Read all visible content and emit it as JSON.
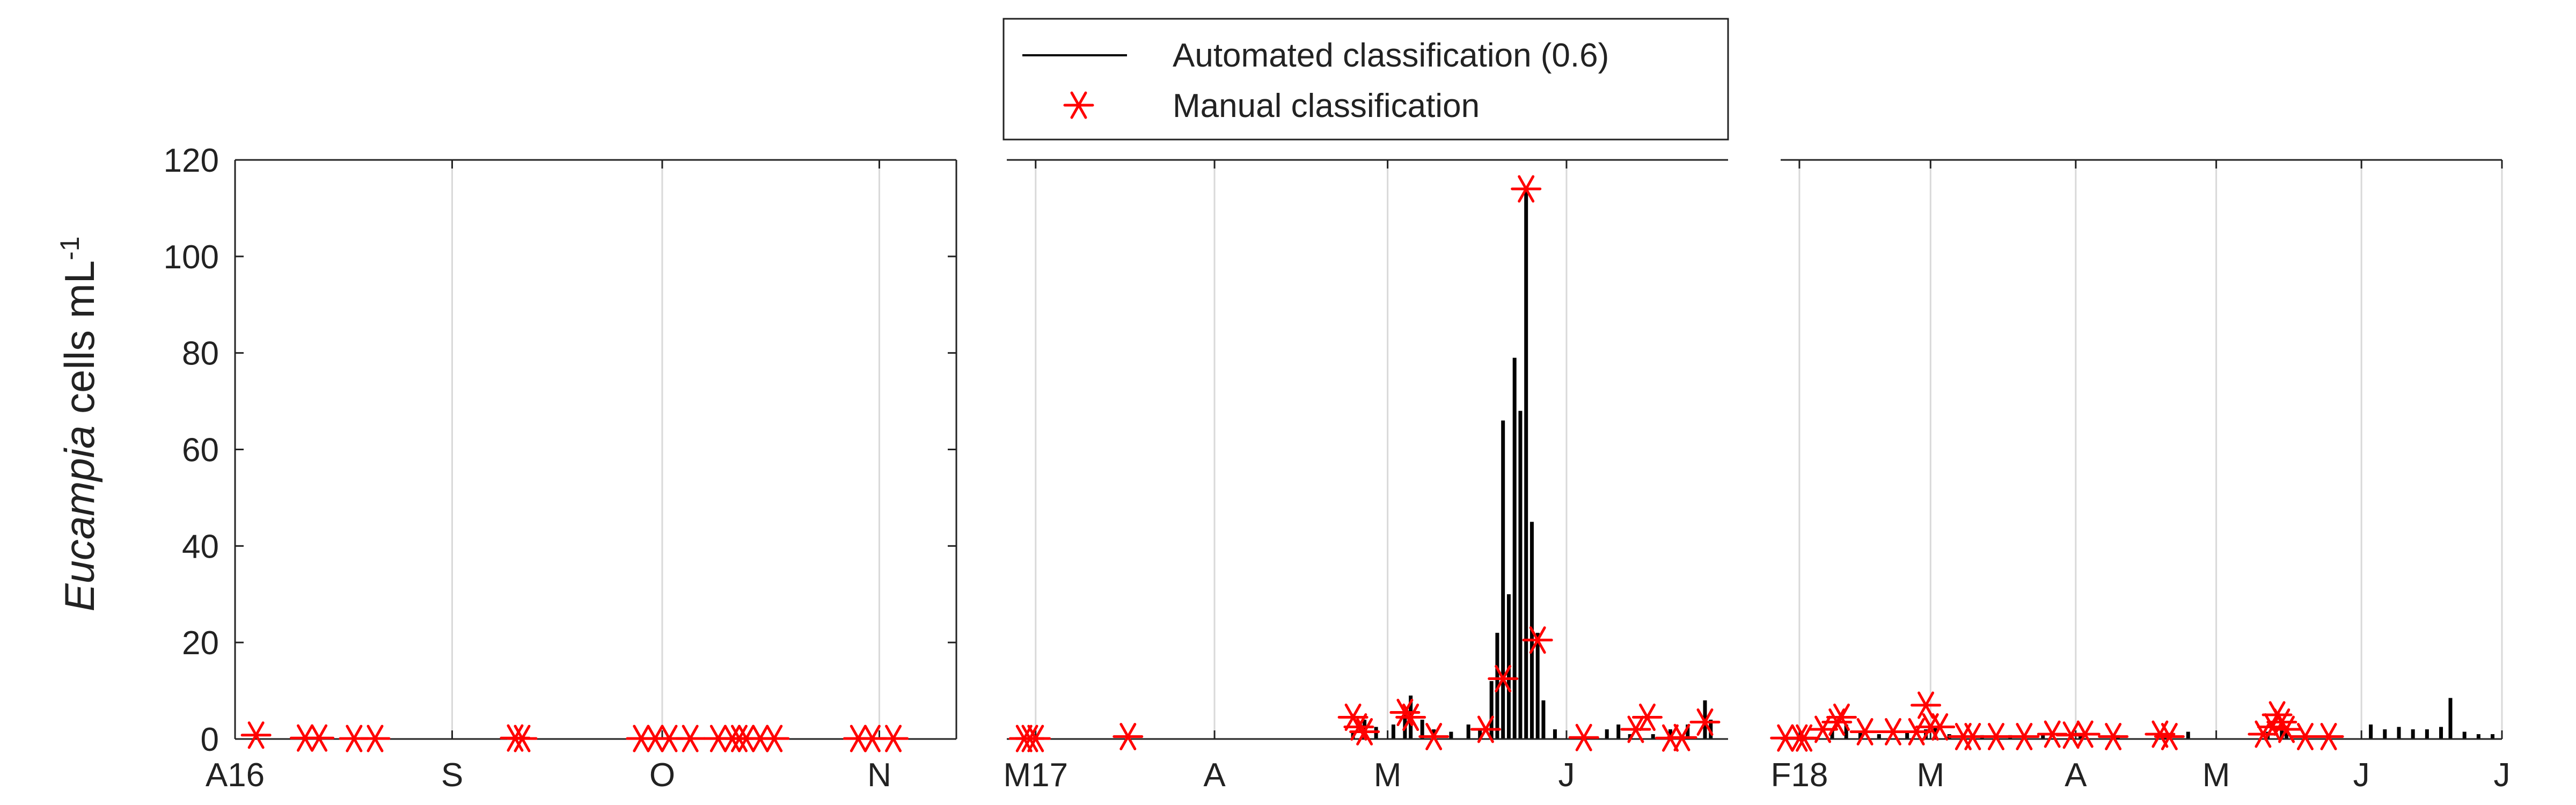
{
  "chart_data": {
    "type": "bar",
    "ylabel": {
      "italic": "Eucampia",
      "plain": " cells mL",
      "superscript": "-1"
    },
    "ylim": [
      0,
      120
    ],
    "yticks": [
      0,
      20,
      40,
      60,
      80,
      100,
      120
    ],
    "grid": "x",
    "legend": {
      "placement": "top-center",
      "entries": [
        {
          "label": "Automated classification (0.6)",
          "style": "line",
          "color": "#000000"
        },
        {
          "label": "Manual classification",
          "style": "asterisk",
          "color": "#ff0000"
        }
      ]
    },
    "series_colors": {
      "automated": "#000000",
      "manual": "#ff0000"
    },
    "panels": [
      {
        "xlim": [
          "2016-08-01",
          "2016-11-12"
        ],
        "xticks": [
          {
            "date": "2016-08-01",
            "label": "A16"
          },
          {
            "date": "2016-09-01",
            "label": "S"
          },
          {
            "date": "2016-10-01",
            "label": "O"
          },
          {
            "date": "2016-11-01",
            "label": "N"
          }
        ],
        "automated": [],
        "manual": [
          {
            "x": "2016-08-04",
            "y": 0.8
          },
          {
            "x": "2016-08-11",
            "y": 0.2
          },
          {
            "x": "2016-08-13",
            "y": 0.2
          },
          {
            "x": "2016-08-18",
            "y": 0.1
          },
          {
            "x": "2016-08-21",
            "y": 0.1
          },
          {
            "x": "2016-09-10",
            "y": 0.2
          },
          {
            "x": "2016-09-11",
            "y": 0.1
          },
          {
            "x": "2016-09-28",
            "y": 0.1
          },
          {
            "x": "2016-09-30",
            "y": 0.1
          },
          {
            "x": "2016-10-02",
            "y": 0.1
          },
          {
            "x": "2016-10-05",
            "y": 0.1
          },
          {
            "x": "2016-10-09",
            "y": 0.1
          },
          {
            "x": "2016-10-11",
            "y": 0.1
          },
          {
            "x": "2016-10-12",
            "y": 0.1
          },
          {
            "x": "2016-10-13",
            "y": 0.1
          },
          {
            "x": "2016-10-15",
            "y": 0.1
          },
          {
            "x": "2016-10-17",
            "y": 0.1
          },
          {
            "x": "2016-10-29",
            "y": 0.1
          },
          {
            "x": "2016-10-31",
            "y": 0.1
          },
          {
            "x": "2016-11-03",
            "y": 0.1
          }
        ]
      },
      {
        "xlim": [
          "2017-02-24",
          "2017-06-29"
        ],
        "xticks": [
          {
            "date": "2017-03-01",
            "label": "M17"
          },
          {
            "date": "2017-04-01",
            "label": "A"
          },
          {
            "date": "2017-05-01",
            "label": "M"
          },
          {
            "date": "2017-06-01",
            "label": "J"
          }
        ],
        "automated": [
          {
            "x": "2017-04-25",
            "y": 1.5
          },
          {
            "x": "2017-04-27",
            "y": 4.0
          },
          {
            "x": "2017-04-29",
            "y": 2.5
          },
          {
            "x": "2017-05-02",
            "y": 3.0
          },
          {
            "x": "2017-05-04",
            "y": 6.0
          },
          {
            "x": "2017-05-05",
            "y": 9.0
          },
          {
            "x": "2017-05-07",
            "y": 4.0
          },
          {
            "x": "2017-05-09",
            "y": 2.0
          },
          {
            "x": "2017-05-12",
            "y": 1.5
          },
          {
            "x": "2017-05-15",
            "y": 3.0
          },
          {
            "x": "2017-05-17",
            "y": 2.0
          },
          {
            "x": "2017-05-19",
            "y": 12.0
          },
          {
            "x": "2017-05-20",
            "y": 22.0
          },
          {
            "x": "2017-05-21",
            "y": 66.0
          },
          {
            "x": "2017-05-22",
            "y": 30.0
          },
          {
            "x": "2017-05-23",
            "y": 79.0
          },
          {
            "x": "2017-05-24",
            "y": 68.0
          },
          {
            "x": "2017-05-25",
            "y": 114.0
          },
          {
            "x": "2017-05-26",
            "y": 45.0
          },
          {
            "x": "2017-05-27",
            "y": 22.0
          },
          {
            "x": "2017-05-28",
            "y": 8.0
          },
          {
            "x": "2017-05-30",
            "y": 2.0
          },
          {
            "x": "2017-06-08",
            "y": 2.0
          },
          {
            "x": "2017-06-10",
            "y": 3.0
          },
          {
            "x": "2017-06-12",
            "y": 1.0
          },
          {
            "x": "2017-06-16",
            "y": 1.0
          },
          {
            "x": "2017-06-19",
            "y": 2.0
          },
          {
            "x": "2017-06-22",
            "y": 3.0
          },
          {
            "x": "2017-06-25",
            "y": 8.0
          },
          {
            "x": "2017-06-26",
            "y": 4.0
          }
        ],
        "manual": [
          {
            "x": "2017-02-27",
            "y": 0.1
          },
          {
            "x": "2017-02-28",
            "y": 0.1
          },
          {
            "x": "2017-03-01",
            "y": 0.1
          },
          {
            "x": "2017-03-17",
            "y": 0.5
          },
          {
            "x": "2017-04-25",
            "y": 4.5
          },
          {
            "x": "2017-04-26",
            "y": 2.5
          },
          {
            "x": "2017-04-27",
            "y": 1.5
          },
          {
            "x": "2017-05-04",
            "y": 5.5
          },
          {
            "x": "2017-05-05",
            "y": 4.5
          },
          {
            "x": "2017-05-09",
            "y": 0.5
          },
          {
            "x": "2017-05-18",
            "y": 2.0
          },
          {
            "x": "2017-05-21",
            "y": 12.5
          },
          {
            "x": "2017-05-25",
            "y": 114.0
          },
          {
            "x": "2017-05-27",
            "y": 20.5
          },
          {
            "x": "2017-06-04",
            "y": 0.3
          },
          {
            "x": "2017-06-13",
            "y": 2.0
          },
          {
            "x": "2017-06-15",
            "y": 4.5
          },
          {
            "x": "2017-06-19",
            "y": 0.2
          },
          {
            "x": "2017-06-21",
            "y": 0.3
          },
          {
            "x": "2017-06-25",
            "y": 3.5
          }
        ]
      },
      {
        "xlim": [
          "2018-01-28",
          "2018-07-01"
        ],
        "xticks": [
          {
            "date": "2018-02-01",
            "label": "F18"
          },
          {
            "date": "2018-03-01",
            "label": "M"
          },
          {
            "date": "2018-04-01",
            "label": "A"
          },
          {
            "date": "2018-05-01",
            "label": "M"
          },
          {
            "date": "2018-06-01",
            "label": "J"
          },
          {
            "date": "2018-07-01",
            "label": "J"
          }
        ],
        "automated": [
          {
            "x": "2018-02-08",
            "y": 2.0
          },
          {
            "x": "2018-02-11",
            "y": 3.0
          },
          {
            "x": "2018-02-14",
            "y": 1.5
          },
          {
            "x": "2018-02-18",
            "y": 1.0
          },
          {
            "x": "2018-02-24",
            "y": 1.5
          },
          {
            "x": "2018-02-28",
            "y": 2.0
          },
          {
            "x": "2018-03-02",
            "y": 2.5
          },
          {
            "x": "2018-03-05",
            "y": 1.0
          },
          {
            "x": "2018-03-12",
            "y": 0.8
          },
          {
            "x": "2018-03-18",
            "y": 0.8
          },
          {
            "x": "2018-03-25",
            "y": 1.0
          },
          {
            "x": "2018-04-02",
            "y": 1.2
          },
          {
            "x": "2018-04-10",
            "y": 0.8
          },
          {
            "x": "2018-04-20",
            "y": 1.0
          },
          {
            "x": "2018-04-25",
            "y": 1.5
          },
          {
            "x": "2018-05-12",
            "y": 1.5
          },
          {
            "x": "2018-05-15",
            "y": 3.0
          },
          {
            "x": "2018-05-16",
            "y": 2.0
          },
          {
            "x": "2018-05-20",
            "y": 1.0
          },
          {
            "x": "2018-06-03",
            "y": 3.0
          },
          {
            "x": "2018-06-06",
            "y": 2.0
          },
          {
            "x": "2018-06-09",
            "y": 2.5
          },
          {
            "x": "2018-06-12",
            "y": 2.0
          },
          {
            "x": "2018-06-15",
            "y": 2.0
          },
          {
            "x": "2018-06-18",
            "y": 2.5
          },
          {
            "x": "2018-06-20",
            "y": 8.5
          },
          {
            "x": "2018-06-23",
            "y": 1.5
          },
          {
            "x": "2018-06-26",
            "y": 1.0
          },
          {
            "x": "2018-06-29",
            "y": 1.0
          }
        ],
        "manual": [
          {
            "x": "2018-01-29",
            "y": 0.2
          },
          {
            "x": "2018-02-01",
            "y": 0.2
          },
          {
            "x": "2018-02-02",
            "y": 0.2
          },
          {
            "x": "2018-02-06",
            "y": 2.0
          },
          {
            "x": "2018-02-09",
            "y": 3.5
          },
          {
            "x": "2018-02-10",
            "y": 4.5
          },
          {
            "x": "2018-02-15",
            "y": 1.5
          },
          {
            "x": "2018-02-21",
            "y": 1.5
          },
          {
            "x": "2018-02-26",
            "y": 1.5
          },
          {
            "x": "2018-02-28",
            "y": 7.0
          },
          {
            "x": "2018-03-01",
            "y": 2.5
          },
          {
            "x": "2018-03-03",
            "y": 2.5
          },
          {
            "x": "2018-03-08",
            "y": 0.5
          },
          {
            "x": "2018-03-10",
            "y": 0.5
          },
          {
            "x": "2018-03-15",
            "y": 0.5
          },
          {
            "x": "2018-03-21",
            "y": 0.5
          },
          {
            "x": "2018-03-27",
            "y": 1.0
          },
          {
            "x": "2018-03-31",
            "y": 0.8
          },
          {
            "x": "2018-04-03",
            "y": 1.0
          },
          {
            "x": "2018-04-09",
            "y": 0.5
          },
          {
            "x": "2018-04-19",
            "y": 1.0
          },
          {
            "x": "2018-04-21",
            "y": 0.5
          },
          {
            "x": "2018-05-11",
            "y": 1.0
          },
          {
            "x": "2018-05-13",
            "y": 2.5
          },
          {
            "x": "2018-05-14",
            "y": 5.0
          },
          {
            "x": "2018-05-15",
            "y": 3.5
          },
          {
            "x": "2018-05-16",
            "y": 2.0
          },
          {
            "x": "2018-05-20",
            "y": 0.5
          },
          {
            "x": "2018-05-25",
            "y": 0.5
          }
        ]
      }
    ]
  }
}
